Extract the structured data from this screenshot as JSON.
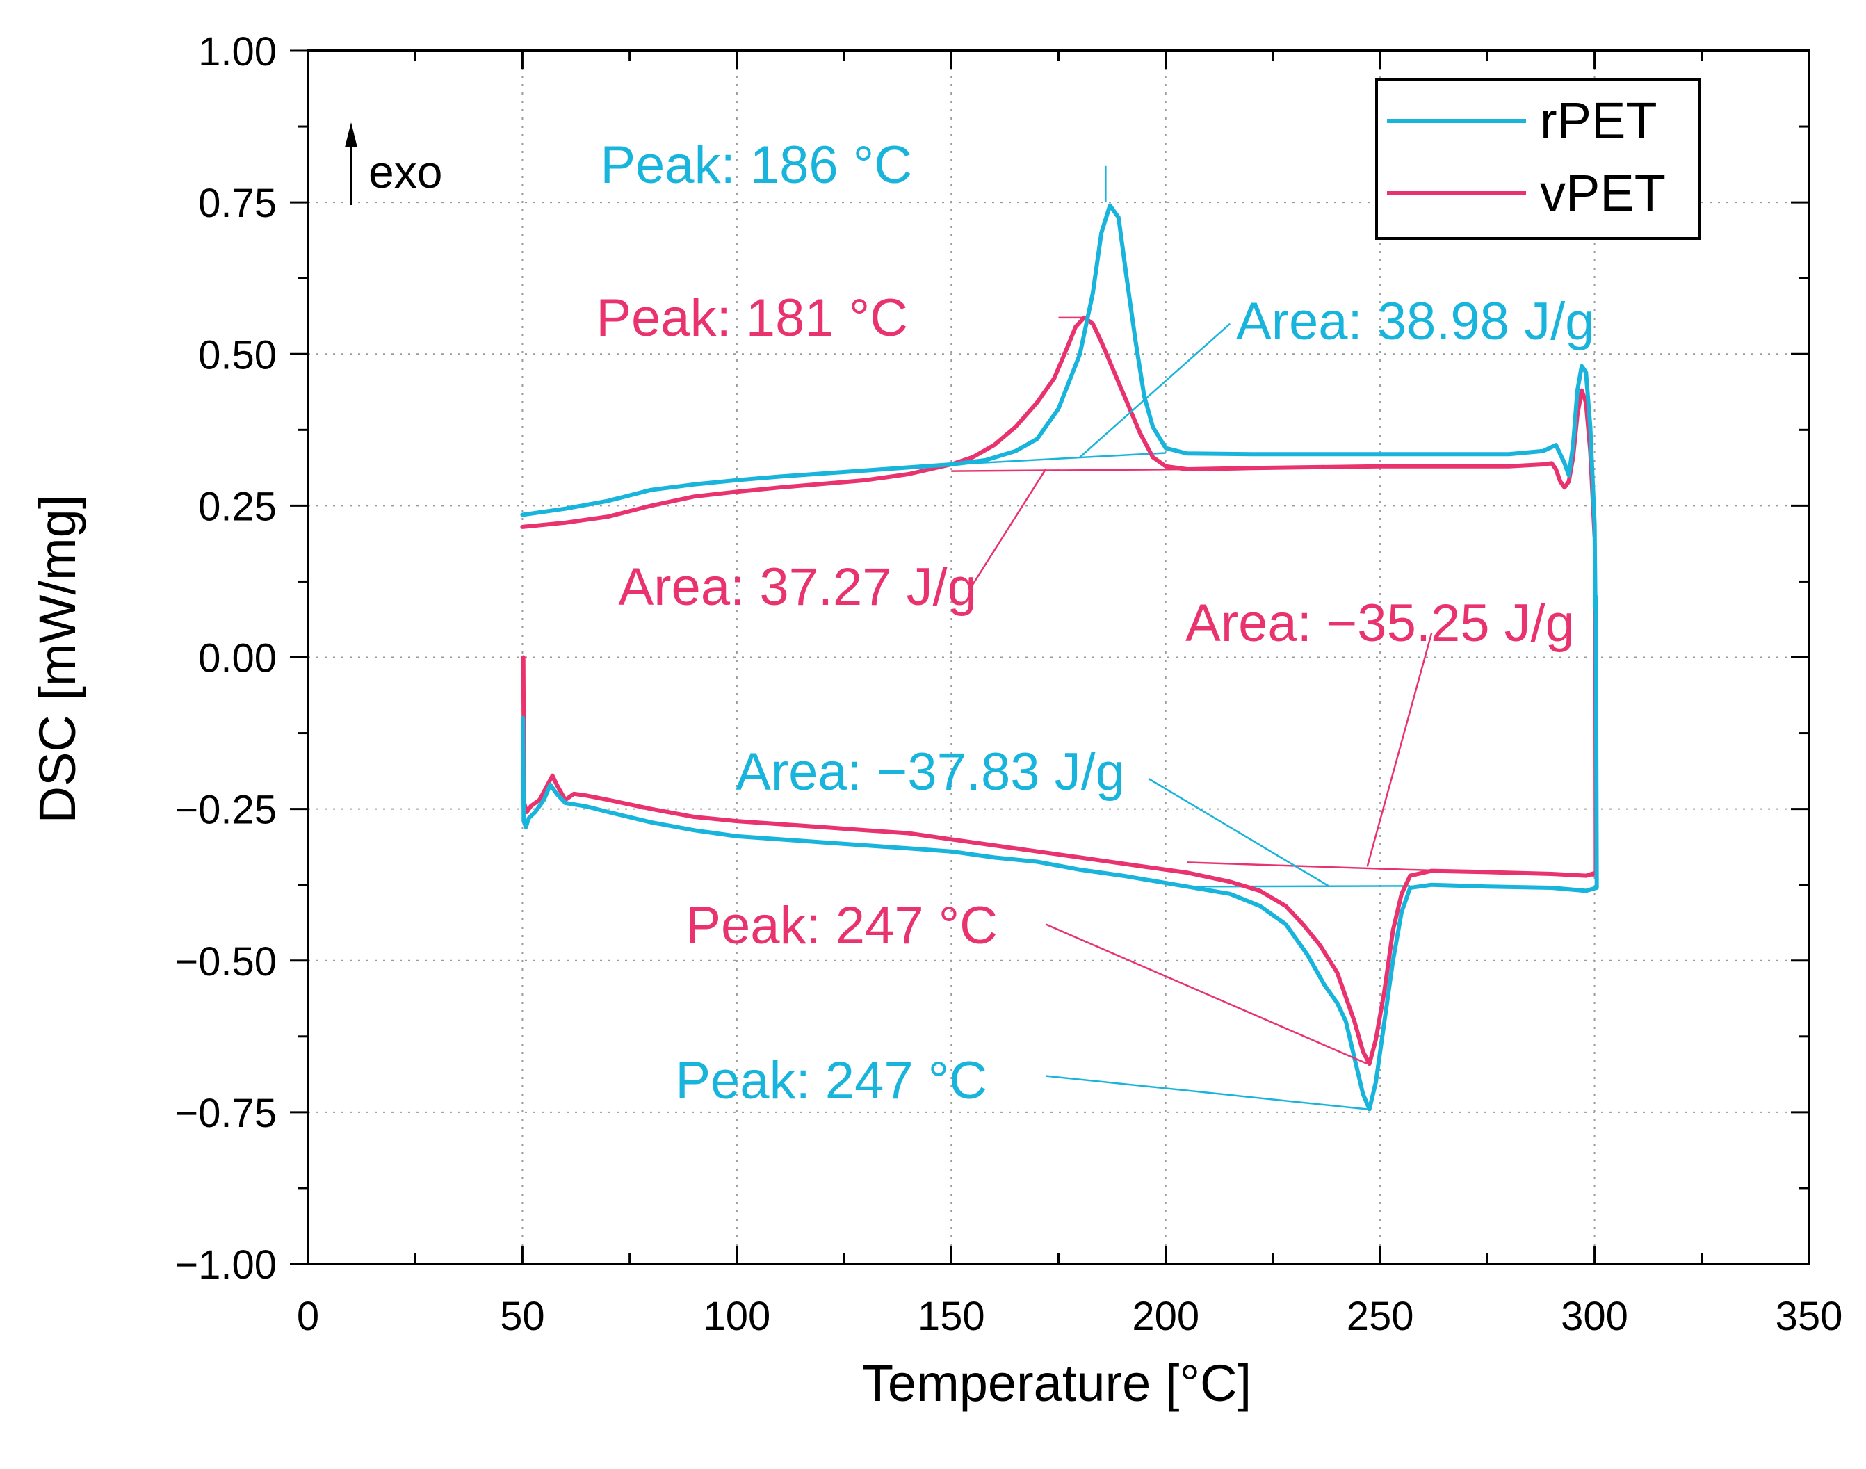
{
  "colors": {
    "rPET": "#18b4dc",
    "vPET": "#e8336e",
    "axis": "#000000",
    "grid": "#9a9a9a"
  },
  "chart_data": {
    "type": "line",
    "title": "",
    "xlabel": "Temperature [°C]",
    "ylabel": "DSC [mW/mg]",
    "xlim": [
      0,
      350
    ],
    "ylim": [
      -1.0,
      1.0
    ],
    "grid": true,
    "x_ticks": [
      0,
      50,
      100,
      150,
      200,
      250,
      300,
      350
    ],
    "x_tick_labels": [
      "0",
      "50",
      "100",
      "150",
      "200",
      "250",
      "300",
      "350"
    ],
    "y_ticks": [
      1.0,
      0.75,
      0.5,
      0.25,
      0.0,
      -0.25,
      -0.5,
      -0.75,
      -1.0
    ],
    "y_tick_labels": [
      "1.00",
      "0.75",
      "0.50",
      "0.25",
      "0.00",
      "−0.25",
      "−0.50",
      "−0.75",
      "−1.00"
    ],
    "legend_position": "top-right",
    "exo_label": "exo",
    "series": [
      {
        "name": "rPET",
        "color": "#18b4dc",
        "cooling": [
          [
            50,
            0.235
          ],
          [
            60,
            0.245
          ],
          [
            70,
            0.258
          ],
          [
            80,
            0.276
          ],
          [
            90,
            0.285
          ],
          [
            100,
            0.292
          ],
          [
            110,
            0.298
          ],
          [
            120,
            0.303
          ],
          [
            130,
            0.308
          ],
          [
            140,
            0.313
          ],
          [
            150,
            0.318
          ],
          [
            158,
            0.325
          ],
          [
            165,
            0.34
          ],
          [
            170,
            0.36
          ],
          [
            175,
            0.41
          ],
          [
            180,
            0.5
          ],
          [
            183,
            0.6
          ],
          [
            185,
            0.7
          ],
          [
            187,
            0.745
          ],
          [
            189,
            0.725
          ],
          [
            191,
            0.62
          ],
          [
            193,
            0.52
          ],
          [
            195,
            0.43
          ],
          [
            197,
            0.38
          ],
          [
            200,
            0.345
          ],
          [
            205,
            0.336
          ],
          [
            220,
            0.335
          ],
          [
            250,
            0.335
          ],
          [
            280,
            0.335
          ],
          [
            288,
            0.34
          ],
          [
            291,
            0.35
          ],
          [
            293,
            0.32
          ],
          [
            294,
            0.3
          ],
          [
            295,
            0.35
          ],
          [
            296,
            0.44
          ],
          [
            297,
            0.48
          ],
          [
            298,
            0.47
          ],
          [
            299,
            0.38
          ],
          [
            300,
            0.22
          ],
          [
            300.2,
            0.08
          ]
        ],
        "heating": [
          [
            300.3,
            0.1
          ],
          [
            300.5,
            -0.38
          ],
          [
            298,
            -0.385
          ],
          [
            290,
            -0.38
          ],
          [
            275,
            -0.378
          ],
          [
            262,
            -0.375
          ],
          [
            257,
            -0.38
          ],
          [
            255,
            -0.42
          ],
          [
            253,
            -0.5
          ],
          [
            251,
            -0.6
          ],
          [
            249,
            -0.7
          ],
          [
            247.5,
            -0.745
          ],
          [
            246,
            -0.72
          ],
          [
            244,
            -0.66
          ],
          [
            242,
            -0.6
          ],
          [
            240,
            -0.57
          ],
          [
            237,
            -0.54
          ],
          [
            233,
            -0.49
          ],
          [
            228,
            -0.44
          ],
          [
            222,
            -0.41
          ],
          [
            215,
            -0.39
          ],
          [
            205,
            -0.378
          ],
          [
            200,
            -0.372
          ],
          [
            190,
            -0.36
          ],
          [
            180,
            -0.35
          ],
          [
            170,
            -0.337
          ],
          [
            160,
            -0.33
          ],
          [
            150,
            -0.32
          ],
          [
            140,
            -0.315
          ],
          [
            130,
            -0.31
          ],
          [
            120,
            -0.305
          ],
          [
            110,
            -0.3
          ],
          [
            100,
            -0.295
          ],
          [
            90,
            -0.285
          ],
          [
            80,
            -0.272
          ],
          [
            70,
            -0.255
          ],
          [
            65,
            -0.246
          ],
          [
            60,
            -0.24
          ],
          [
            58,
            -0.225
          ],
          [
            56.5,
            -0.21
          ],
          [
            55,
            -0.235
          ],
          [
            53,
            -0.255
          ],
          [
            51.5,
            -0.265
          ],
          [
            50.8,
            -0.28
          ],
          [
            50.3,
            -0.27
          ],
          [
            50.1,
            -0.1
          ]
        ]
      },
      {
        "name": "vPET",
        "color": "#e8336e",
        "cooling": [
          [
            50,
            0.215
          ],
          [
            60,
            0.222
          ],
          [
            70,
            0.232
          ],
          [
            80,
            0.25
          ],
          [
            90,
            0.265
          ],
          [
            100,
            0.273
          ],
          [
            110,
            0.28
          ],
          [
            120,
            0.286
          ],
          [
            130,
            0.292
          ],
          [
            140,
            0.302
          ],
          [
            150,
            0.318
          ],
          [
            155,
            0.33
          ],
          [
            160,
            0.35
          ],
          [
            165,
            0.38
          ],
          [
            170,
            0.42
          ],
          [
            174,
            0.46
          ],
          [
            177,
            0.51
          ],
          [
            179,
            0.545
          ],
          [
            181,
            0.56
          ],
          [
            183,
            0.55
          ],
          [
            185,
            0.52
          ],
          [
            188,
            0.47
          ],
          [
            191,
            0.42
          ],
          [
            194,
            0.37
          ],
          [
            197,
            0.33
          ],
          [
            200,
            0.315
          ],
          [
            205,
            0.31
          ],
          [
            220,
            0.312
          ],
          [
            250,
            0.315
          ],
          [
            280,
            0.315
          ],
          [
            288,
            0.318
          ],
          [
            290,
            0.32
          ],
          [
            291,
            0.31
          ],
          [
            292,
            0.29
          ],
          [
            293,
            0.28
          ],
          [
            294,
            0.29
          ],
          [
            295,
            0.33
          ],
          [
            296,
            0.4
          ],
          [
            297,
            0.44
          ],
          [
            298,
            0.42
          ],
          [
            299,
            0.34
          ],
          [
            300,
            0.2
          ]
        ],
        "heating": [
          [
            300.2,
            0.1
          ],
          [
            300.3,
            -0.355
          ],
          [
            298,
            -0.36
          ],
          [
            290,
            -0.357
          ],
          [
            275,
            -0.354
          ],
          [
            262,
            -0.352
          ],
          [
            257,
            -0.36
          ],
          [
            255,
            -0.39
          ],
          [
            253,
            -0.45
          ],
          [
            251,
            -0.55
          ],
          [
            249,
            -0.63
          ],
          [
            247.5,
            -0.67
          ],
          [
            246,
            -0.65
          ],
          [
            244,
            -0.6
          ],
          [
            242,
            -0.56
          ],
          [
            240,
            -0.52
          ],
          [
            236,
            -0.475
          ],
          [
            232,
            -0.44
          ],
          [
            228,
            -0.41
          ],
          [
            222,
            -0.385
          ],
          [
            215,
            -0.37
          ],
          [
            205,
            -0.355
          ],
          [
            200,
            -0.35
          ],
          [
            190,
            -0.34
          ],
          [
            180,
            -0.33
          ],
          [
            170,
            -0.32
          ],
          [
            160,
            -0.31
          ],
          [
            150,
            -0.3
          ],
          [
            140,
            -0.29
          ],
          [
            130,
            -0.285
          ],
          [
            120,
            -0.28
          ],
          [
            110,
            -0.275
          ],
          [
            100,
            -0.27
          ],
          [
            90,
            -0.263
          ],
          [
            80,
            -0.25
          ],
          [
            70,
            -0.235
          ],
          [
            65,
            -0.228
          ],
          [
            62,
            -0.225
          ],
          [
            60,
            -0.235
          ],
          [
            58,
            -0.21
          ],
          [
            57,
            -0.195
          ],
          [
            55.5,
            -0.215
          ],
          [
            54,
            -0.235
          ],
          [
            52,
            -0.245
          ],
          [
            51,
            -0.255
          ],
          [
            50.4,
            -0.24
          ],
          [
            50.2,
            0.0
          ]
        ]
      }
    ],
    "baselines": [
      {
        "series": "rPET",
        "points": [
          [
            150,
            0.318
          ],
          [
            200,
            0.337
          ]
        ]
      },
      {
        "series": "vPET",
        "points": [
          [
            150,
            0.307
          ],
          [
            205,
            0.31
          ]
        ]
      },
      {
        "series": "rPET",
        "points": [
          [
            205,
            -0.378
          ],
          [
            257,
            -0.377
          ]
        ]
      },
      {
        "series": "vPET",
        "points": [
          [
            205,
            -0.338
          ],
          [
            300,
            -0.36
          ]
        ]
      }
    ],
    "annotations": [
      {
        "text": "Peak: 186 °C",
        "series": "rPET",
        "at": [
          186,
          0.75
        ],
        "label_anchor": [
          186,
          0.81
        ]
      },
      {
        "text": "Peak: 181 °C",
        "series": "vPET",
        "at": [
          181,
          0.56
        ],
        "label_anchor": [
          175,
          0.56
        ]
      },
      {
        "text": "Area: 38.98 J/g",
        "series": "rPET",
        "at": [
          180,
          0.33
        ],
        "label_anchor": [
          215,
          0.55
        ]
      },
      {
        "text": "Area: 37.27 J/g",
        "series": "vPET",
        "at": [
          172,
          0.31
        ],
        "label_anchor": [
          155,
          0.12
        ]
      },
      {
        "text": "Area: −35.25 J/g",
        "series": "vPET",
        "at": [
          247,
          -0.345
        ],
        "label_anchor": [
          262,
          0.04
        ]
      },
      {
        "text": "Area: −37.83 J/g",
        "series": "rPET",
        "at": [
          238,
          -0.377
        ],
        "label_anchor": [
          196,
          -0.2
        ]
      },
      {
        "text": "Peak: 247 °C",
        "series": "vPET",
        "at": [
          247,
          -0.67
        ],
        "label_anchor": [
          172,
          -0.44
        ]
      },
      {
        "text": "Peak: 247 °C",
        "series": "rPET",
        "at": [
          247,
          -0.745
        ],
        "label_anchor": [
          172,
          -0.69
        ]
      }
    ]
  }
}
